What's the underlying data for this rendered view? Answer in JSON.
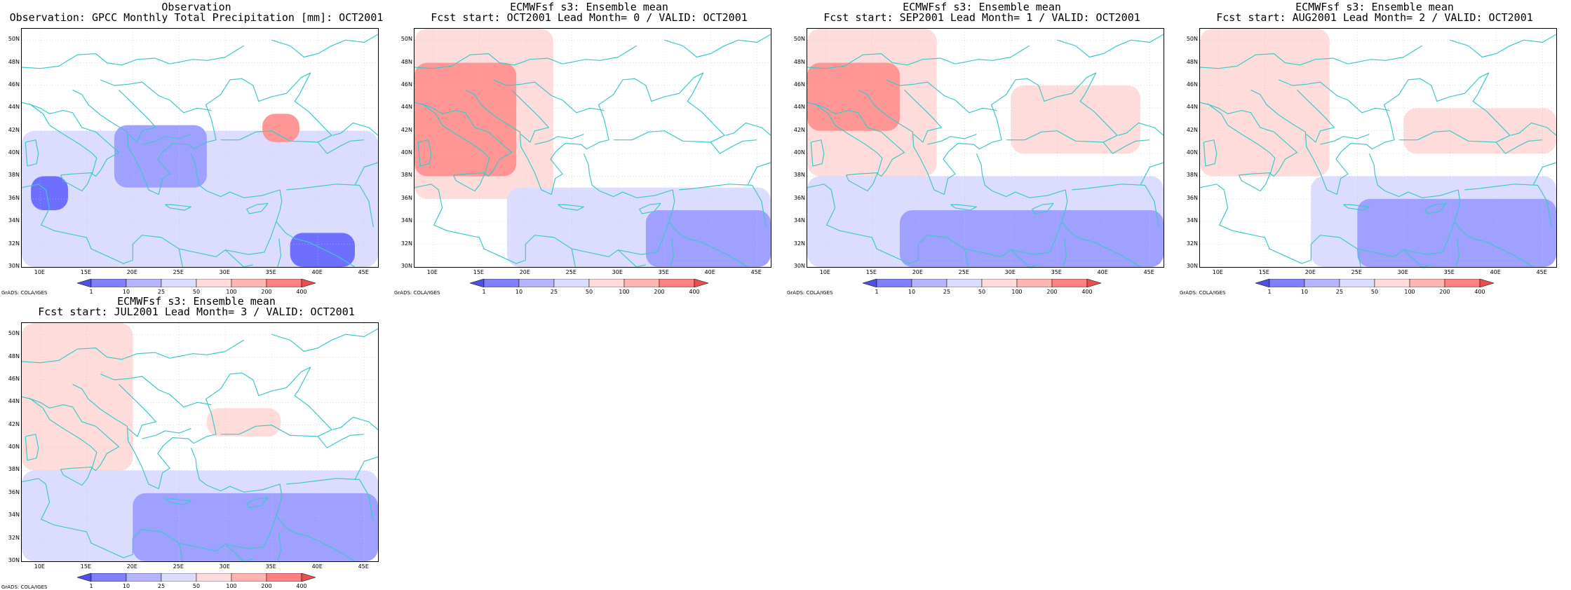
{
  "colors": {
    "coast": "#3cc8c8",
    "dry1": "#ffdcdc",
    "dry2": "#ff9696",
    "dry3": "#e65050",
    "wet1": "#dcdcff",
    "wet2": "#a0a0ff",
    "wet3": "#6e6eff",
    "wet4": "#5050e6"
  },
  "axes": {
    "lat_labels": [
      "50N",
      "48N",
      "46N",
      "44N",
      "42N",
      "40N",
      "38N",
      "36N",
      "34N",
      "32N",
      "30N"
    ],
    "lon_labels": [
      "10E",
      "15E",
      "20E",
      "25E",
      "30E",
      "35E",
      "40E",
      "45E"
    ],
    "lat_range": [
      30,
      51
    ],
    "lon_range": [
      8,
      46.5
    ]
  },
  "colorbar": {
    "labels": [
      "1",
      "10",
      "25",
      "50",
      "100",
      "200",
      "400"
    ],
    "unit": "mm",
    "colors": [
      "#5050e6",
      "#8080ff",
      "#b4b4ff",
      "#dcdcff",
      "#ffdcdc",
      "#ffb4b4",
      "#ff8080",
      "#e65050"
    ]
  },
  "credit": "GrADS: COLA/IGES",
  "panels": [
    {
      "id": "obs",
      "title1": "Observation",
      "title2": "Observation: GPCC Monthly Total Precipitation [mm]: OCT2001",
      "anomaly": "observation",
      "regions": [
        {
          "level": "wet1",
          "lon": [
            8,
            46.5
          ],
          "lat": [
            30,
            42
          ]
        },
        {
          "level": "wet2",
          "lon": [
            18,
            28
          ],
          "lat": [
            37,
            42.5
          ]
        },
        {
          "level": "wet3",
          "lon": [
            9,
            13
          ],
          "lat": [
            35,
            38
          ]
        },
        {
          "level": "wet3",
          "lon": [
            37,
            44
          ],
          "lat": [
            30,
            33
          ]
        },
        {
          "level": "dry2",
          "lon": [
            34,
            38
          ],
          "lat": [
            41,
            43.5
          ]
        }
      ]
    },
    {
      "id": "lead0",
      "title1": "ECMWFsf s3: Ensemble mean",
      "title2": "Fcst start: OCT2001  Lead Month= 0 / VALID: OCT2001",
      "regions": [
        {
          "level": "dry1",
          "lon": [
            8,
            23
          ],
          "lat": [
            36,
            51
          ]
        },
        {
          "level": "dry2",
          "lon": [
            8,
            19
          ],
          "lat": [
            38,
            48
          ]
        },
        {
          "level": "wet1",
          "lon": [
            18,
            46.5
          ],
          "lat": [
            30,
            37
          ]
        },
        {
          "level": "wet2",
          "lon": [
            33,
            46.5
          ],
          "lat": [
            30,
            35
          ]
        }
      ]
    },
    {
      "id": "lead1",
      "title1": "ECMWFsf s3: Ensemble mean",
      "title2": "Fcst start: SEP2001  Lead Month= 1 / VALID: OCT2001",
      "regions": [
        {
          "level": "dry1",
          "lon": [
            8,
            22
          ],
          "lat": [
            38,
            51
          ]
        },
        {
          "level": "dry2",
          "lon": [
            8,
            18
          ],
          "lat": [
            42,
            48
          ]
        },
        {
          "level": "dry1",
          "lon": [
            30,
            44
          ],
          "lat": [
            40,
            46
          ]
        },
        {
          "level": "wet1",
          "lon": [
            8,
            46.5
          ],
          "lat": [
            30,
            38
          ]
        },
        {
          "level": "wet2",
          "lon": [
            18,
            46.5
          ],
          "lat": [
            30,
            35
          ]
        }
      ]
    },
    {
      "id": "lead2",
      "title1": "ECMWFsf s3: Ensemble mean",
      "title2": "Fcst start: AUG2001  Lead Month= 2 / VALID: OCT2001",
      "regions": [
        {
          "level": "dry1",
          "lon": [
            8,
            22
          ],
          "lat": [
            38,
            51
          ]
        },
        {
          "level": "dry1",
          "lon": [
            30,
            46.5
          ],
          "lat": [
            40,
            44
          ]
        },
        {
          "level": "wet1",
          "lon": [
            20,
            46.5
          ],
          "lat": [
            30,
            38
          ]
        },
        {
          "level": "wet2",
          "lon": [
            25,
            46.5
          ],
          "lat": [
            30,
            36
          ]
        }
      ]
    },
    {
      "id": "lead3",
      "title1": "ECMWFsf s3: Ensemble mean",
      "title2": "Fcst start: JUL2001  Lead Month= 3 / VALID: OCT2001",
      "regions": [
        {
          "level": "dry1",
          "lon": [
            8,
            20
          ],
          "lat": [
            38,
            51
          ]
        },
        {
          "level": "dry1",
          "lon": [
            28,
            36
          ],
          "lat": [
            41,
            43.5
          ]
        },
        {
          "level": "wet1",
          "lon": [
            8,
            46.5
          ],
          "lat": [
            30,
            38
          ]
        },
        {
          "level": "wet2",
          "lon": [
            20,
            46.5
          ],
          "lat": [
            30,
            36
          ]
        }
      ]
    }
  ]
}
